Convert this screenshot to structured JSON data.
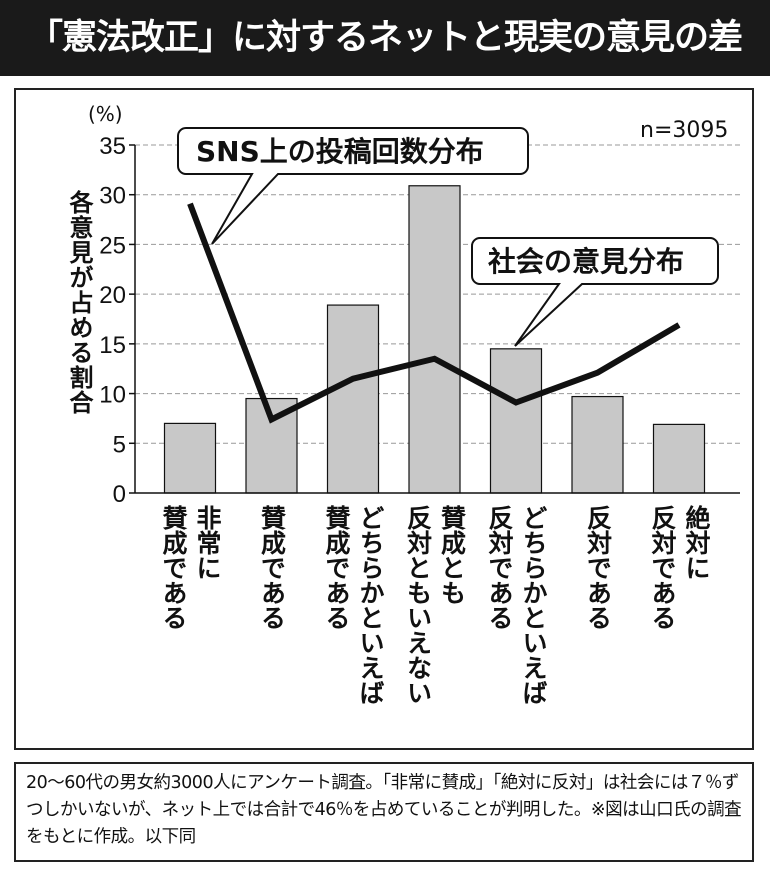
{
  "title": "「憲法改正」に対するネットと現実の意見の差",
  "chart_data": {
    "type": "bar+line",
    "ylabel": "各意見が占める割合",
    "yunit": "(%)",
    "ylim": [
      0,
      35
    ],
    "yticks": [
      0,
      5,
      10,
      15,
      20,
      25,
      30,
      35
    ],
    "grid": true,
    "annotation": "n=3095",
    "categories": [
      "非常に\n賛成である",
      "賛成である",
      "どちらかといえば\n賛成である",
      "賛成とも\n反対ともいえない",
      "どちらかといえば\n反対である",
      "反対である",
      "絶対に\n反対である"
    ],
    "series": [
      {
        "name": "社会の意見分布",
        "type": "bar",
        "color": "#c8c8c8",
        "values": [
          7.0,
          9.5,
          18.9,
          30.9,
          14.5,
          9.7,
          6.9
        ]
      },
      {
        "name": "SNS上の投稿回数分布",
        "type": "line",
        "color": "#111111",
        "values": [
          29.1,
          7.4,
          11.5,
          13.5,
          9.1,
          12.1,
          16.9
        ]
      }
    ]
  },
  "caption": "20～60代の男女約3000人にアンケート調査。「非常に賛成」「絶対に反対」は社会には７％ずつしかいないが、ネット上では合計で46％を占めていることが判明した。※図は山口氏の調査をもとに作成。以下同"
}
